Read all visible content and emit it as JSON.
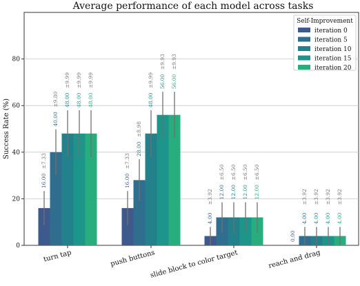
{
  "chart_data": {
    "type": "bar",
    "title": "Average performance of each model across tasks",
    "xlabel": "",
    "ylabel": "Success Rate (%)",
    "ylim": [
      0,
      100
    ],
    "yticks": [
      0,
      20,
      40,
      60,
      80
    ],
    "grid": "horizontal",
    "legend": {
      "title": "Self-Improvement",
      "placement": "top-right"
    },
    "categories": [
      "turn tap",
      "push buttons",
      "slide block to color target",
      "reach and drag"
    ],
    "series": [
      {
        "name": "iteration 0",
        "color": "#3e5a8c",
        "values": [
          16.0,
          16.0,
          4.0,
          0.0
        ],
        "errors": [
          7.33,
          7.33,
          3.92,
          0.0
        ],
        "value_labels": [
          "16.00",
          "16.00",
          "4.00",
          "0.00"
        ],
        "error_labels": [
          "±7.33",
          "±7.33",
          "±3.92",
          ""
        ]
      },
      {
        "name": "iteration 5",
        "color": "#2f6e8e",
        "values": [
          40.0,
          28.0,
          12.0,
          4.0
        ],
        "errors": [
          9.8,
          8.98,
          6.5,
          3.92
        ],
        "value_labels": [
          "40.00",
          "28.00",
          "12.00",
          "4.00"
        ],
        "error_labels": [
          "±9.80",
          "±8.98",
          "±6.50",
          "±3.92"
        ]
      },
      {
        "name": "iteration 10",
        "color": "#23818c",
        "values": [
          48.0,
          48.0,
          12.0,
          4.0
        ],
        "errors": [
          9.99,
          9.99,
          6.5,
          3.92
        ],
        "value_labels": [
          "48.00",
          "48.00",
          "12.00",
          "4.00"
        ],
        "error_labels": [
          "±9.99",
          "±9.99",
          "±6.50",
          "±3.92"
        ]
      },
      {
        "name": "iteration 15",
        "color": "#1e958a",
        "values": [
          48.0,
          56.0,
          12.0,
          4.0
        ],
        "errors": [
          9.99,
          9.93,
          6.5,
          3.92
        ],
        "value_labels": [
          "48.00",
          "56.00",
          "12.00",
          "4.00"
        ],
        "error_labels": [
          "±9.99",
          "±9.93",
          "±6.50",
          "±3.92"
        ]
      },
      {
        "name": "iteration 20",
        "color": "#27ad7e",
        "values": [
          48.0,
          56.0,
          12.0,
          4.0
        ],
        "errors": [
          9.99,
          9.93,
          6.5,
          3.92
        ],
        "value_labels": [
          "48.00",
          "56.00",
          "12.00",
          "4.00"
        ],
        "error_labels": [
          "±9.99",
          "±9.93",
          "±6.50",
          "±3.92"
        ]
      }
    ]
  }
}
